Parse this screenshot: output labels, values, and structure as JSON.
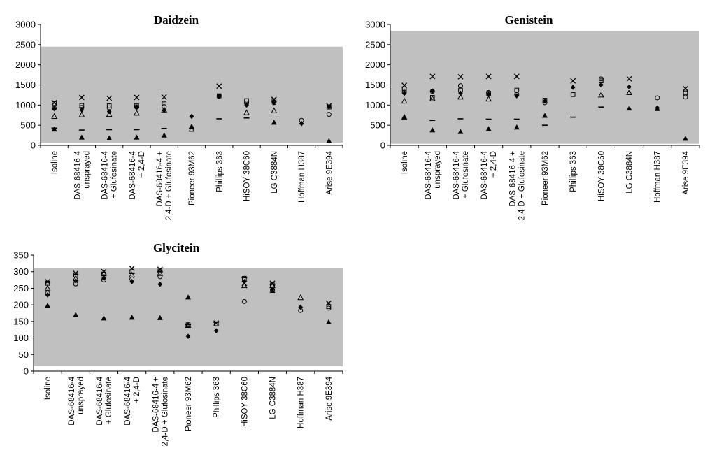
{
  "chart_data": [
    {
      "type": "scatter",
      "title": "Daidzein",
      "categories": [
        "Isoline",
        "DAS-68416-4\nunsprayed",
        "DAS-68416-4\n+ Glufosinate",
        "DAS-68416-4\n+ 2,4-D",
        "DAS-68416-4 +\n2,4-D + Glufosinate",
        "Pioneer 93M62",
        "Phillips 363",
        "HiSOY 38C60",
        "LG C3884N",
        "Hoffman H387",
        "Arise 9E394"
      ],
      "ylim": [
        0,
        3000
      ],
      "yticks": [
        0,
        500,
        1000,
        1500,
        2000,
        2500,
        3000
      ],
      "reference_range": [
        70,
        2450
      ],
      "series": [
        {
          "marker": "x",
          "values": [
            1060,
            1190,
            1170,
            1190,
            1200,
            null,
            1470,
            null,
            1140,
            null,
            980
          ]
        },
        {
          "marker": "square",
          "values": [
            1040,
            990,
            980,
            980,
            1030,
            null,
            1230,
            1110,
            1110,
            null,
            950
          ]
        },
        {
          "marker": "circle",
          "values": [
            920,
            940,
            930,
            950,
            960,
            null,
            1220,
            1050,
            1060,
            620,
            770
          ]
        },
        {
          "marker": "diamond",
          "values": [
            910,
            880,
            840,
            950,
            870,
            720,
            1220,
            1000,
            1070,
            540,
            960
          ]
        },
        {
          "marker": "triangle-open",
          "values": [
            720,
            760,
            770,
            800,
            880,
            400,
            null,
            810,
            860,
            null,
            null
          ]
        },
        {
          "marker": "dash",
          "values": [
            430,
            380,
            390,
            390,
            420,
            420,
            660,
            680,
            null,
            null,
            null
          ]
        },
        {
          "marker": "triangle",
          "values": [
            400,
            200,
            180,
            200,
            250,
            470,
            null,
            null,
            570,
            null,
            110
          ]
        }
      ]
    },
    {
      "type": "scatter",
      "title": "Genistein",
      "categories": [
        "Isoline",
        "DAS-68416-4\nunsprayed",
        "DAS-68416-4\n+ Glufosinate",
        "DAS-68416-4\n+ 2,4-D",
        "DAS-68416-4 +\n2,4-D + Glufosinate",
        "Pioneer 93M62",
        "Phillips 363",
        "HiSOY 38C60",
        "LG C3884N",
        "Hoffman H387",
        "Arise 9E394"
      ],
      "ylim": [
        0,
        3000
      ],
      "yticks": [
        0,
        500,
        1000,
        1500,
        2000,
        2500,
        3000
      ],
      "reference_range": [
        40,
        2840
      ],
      "series": [
        {
          "marker": "x",
          "values": [
            1490,
            1710,
            1700,
            1710,
            1710,
            null,
            1600,
            null,
            1650,
            null,
            1410
          ]
        },
        {
          "marker": "square",
          "values": [
            1400,
            1190,
            1370,
            1290,
            1370,
            1120,
            1260,
            1600,
            null,
            null,
            1300
          ]
        },
        {
          "marker": "circle",
          "values": [
            1320,
            1340,
            1480,
            1310,
            1260,
            1060,
            null,
            1650,
            null,
            1180,
            1200
          ]
        },
        {
          "marker": "diamond",
          "values": [
            1290,
            1350,
            1290,
            1270,
            1230,
            1100,
            1440,
            1500,
            1450,
            930,
            null
          ]
        },
        {
          "marker": "triangle-open",
          "values": [
            1100,
            1160,
            1200,
            1150,
            null,
            null,
            null,
            1250,
            1310,
            null,
            null
          ]
        },
        {
          "marker": "dash",
          "values": [
            640,
            620,
            660,
            650,
            650,
            500,
            700,
            950,
            null,
            null,
            null
          ]
        },
        {
          "marker": "triangle",
          "values": [
            710,
            380,
            340,
            410,
            450,
            740,
            null,
            null,
            920,
            910,
            170
          ]
        }
      ]
    },
    {
      "type": "scatter",
      "title": "Glycitein",
      "categories": [
        "Isoline",
        "DAS-68416-4\nunsprayed",
        "DAS-68416-4\n+ Glufosinate",
        "DAS-68416-4\n+ 2,4-D",
        "DAS-68416-4 +\n2,4-D + Glufosinate",
        "Pioneer 93M62",
        "Phillips 363",
        "HiSOY 38C60",
        "LG C3884N",
        "Hoffman H387",
        "Arise 9E394"
      ],
      "ylim": [
        0,
        350
      ],
      "yticks": [
        0,
        50,
        100,
        150,
        200,
        250,
        300,
        350
      ],
      "reference_range": [
        15,
        310
      ],
      "series": [
        {
          "marker": "x",
          "values": [
            270,
            295,
            300,
            310,
            307,
            null,
            145,
            265,
            265,
            null,
            205
          ]
        },
        {
          "marker": "square",
          "values": [
            265,
            290,
            293,
            300,
            302,
            140,
            143,
            280,
            260,
            null,
            195
          ]
        },
        {
          "marker": "circle",
          "values": [
            235,
            263,
            275,
            278,
            285,
            null,
            null,
            210,
            245,
            183,
            190
          ]
        },
        {
          "marker": "diamond",
          "values": [
            230,
            272,
            280,
            270,
            262,
            105,
            122,
            270,
            248,
            193,
            null
          ]
        },
        {
          "marker": "triangle-open",
          "values": [
            250,
            280,
            295,
            290,
            295,
            138,
            null,
            258,
            258,
            222,
            null
          ]
        },
        {
          "marker": "dash",
          "values": [
            268,
            292,
            290,
            295,
            300,
            140,
            148,
            282,
            262,
            null,
            null
          ]
        },
        {
          "marker": "triangle",
          "values": [
            198,
            170,
            160,
            162,
            161,
            223,
            null,
            null,
            243,
            null,
            148
          ]
        }
      ]
    }
  ]
}
